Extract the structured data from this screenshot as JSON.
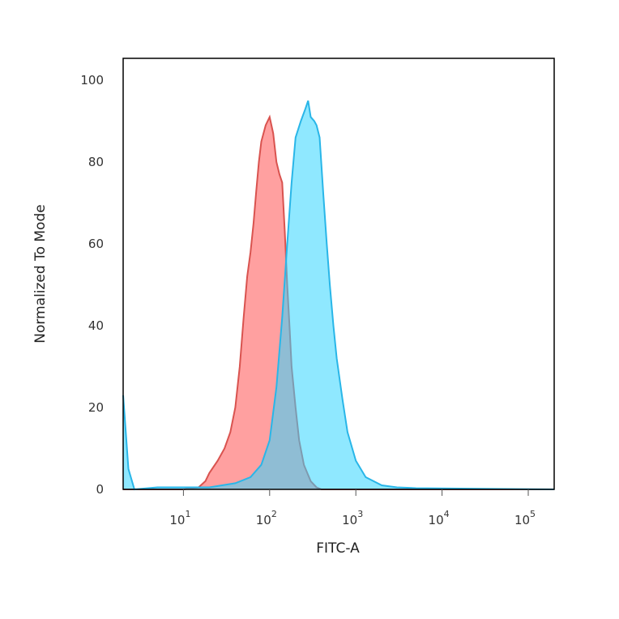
{
  "chart_data": {
    "type": "area",
    "title": "",
    "xlabel": "FITC-A",
    "ylabel": "Normalized To Mode",
    "x_scale": "log",
    "xlim": [
      2.0,
      200000
    ],
    "ylim": [
      0,
      105
    ],
    "x_ticks": [
      {
        "base": "10",
        "exp": "1",
        "value": 10
      },
      {
        "base": "10",
        "exp": "2",
        "value": 100
      },
      {
        "base": "10",
        "exp": "3",
        "value": 1000
      },
      {
        "base": "10",
        "exp": "4",
        "value": 10000
      },
      {
        "base": "10",
        "exp": "5",
        "value": 100000
      }
    ],
    "y_ticks": [
      "0",
      "20",
      "40",
      "60",
      "80",
      "100"
    ],
    "grid": false,
    "legend": "none",
    "series": [
      {
        "color_fill": "#ff8080",
        "color_line": "#d9534f",
        "points": [
          [
            2.0,
            0
          ],
          [
            5,
            0
          ],
          [
            10,
            0
          ],
          [
            15,
            0.5
          ],
          [
            18,
            2
          ],
          [
            20,
            4
          ],
          [
            25,
            7
          ],
          [
            30,
            10
          ],
          [
            35,
            14
          ],
          [
            40,
            20
          ],
          [
            45,
            30
          ],
          [
            50,
            42
          ],
          [
            55,
            52
          ],
          [
            60,
            58
          ],
          [
            65,
            65
          ],
          [
            70,
            73
          ],
          [
            75,
            80
          ],
          [
            80,
            85
          ],
          [
            90,
            89
          ],
          [
            100,
            91
          ],
          [
            110,
            87
          ],
          [
            120,
            80
          ],
          [
            130,
            77
          ],
          [
            140,
            75
          ],
          [
            150,
            63
          ],
          [
            160,
            50
          ],
          [
            170,
            40
          ],
          [
            180,
            30
          ],
          [
            200,
            20
          ],
          [
            220,
            12
          ],
          [
            250,
            6
          ],
          [
            300,
            2
          ],
          [
            350,
            0.5
          ],
          [
            400,
            0
          ],
          [
            200000,
            0
          ]
        ]
      },
      {
        "color_fill": "#33d6ff",
        "color_line": "#29b6e8",
        "points": [
          [
            2.0,
            23
          ],
          [
            2.3,
            5
          ],
          [
            2.7,
            0
          ],
          [
            5,
            0.5
          ],
          [
            10,
            0.5
          ],
          [
            20,
            0.5
          ],
          [
            40,
            1.5
          ],
          [
            60,
            3
          ],
          [
            80,
            6
          ],
          [
            100,
            12
          ],
          [
            120,
            25
          ],
          [
            140,
            42
          ],
          [
            160,
            60
          ],
          [
            180,
            75
          ],
          [
            200,
            86
          ],
          [
            230,
            90
          ],
          [
            260,
            93
          ],
          [
            280,
            95
          ],
          [
            300,
            91
          ],
          [
            330,
            90
          ],
          [
            350,
            89
          ],
          [
            380,
            86
          ],
          [
            420,
            72
          ],
          [
            460,
            60
          ],
          [
            500,
            50
          ],
          [
            550,
            40
          ],
          [
            600,
            32
          ],
          [
            700,
            22
          ],
          [
            800,
            14
          ],
          [
            1000,
            7
          ],
          [
            1300,
            3
          ],
          [
            2000,
            1
          ],
          [
            3000,
            0.5
          ],
          [
            5000,
            0.3
          ],
          [
            200000,
            0
          ]
        ]
      }
    ]
  }
}
